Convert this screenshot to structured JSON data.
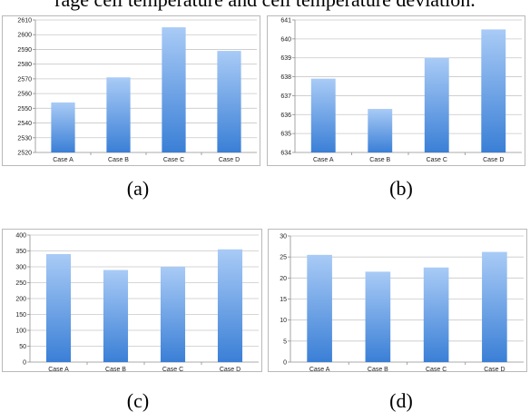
{
  "caption": "rage cell temperature and cell temperature deviation.",
  "colors": {
    "bar_top": "#a9cbf6",
    "bar_bottom": "#3a7fd6",
    "grid": "#c8c8c8",
    "axis": "#8f8f8f"
  },
  "chart_data": [
    {
      "label": "(a)",
      "type": "bar",
      "categories": [
        "Case A",
        "Case B",
        "Case C",
        "Case D"
      ],
      "values": [
        2554,
        2571,
        2605,
        2589
      ],
      "ylim": [
        2520,
        2610
      ],
      "yticks": [
        2520,
        2530,
        2540,
        2550,
        2560,
        2570,
        2580,
        2590,
        2600,
        2610
      ],
      "grid": true
    },
    {
      "label": "(b)",
      "type": "bar",
      "categories": [
        "Case A",
        "Case B",
        "Case C",
        "Case D"
      ],
      "values": [
        637.9,
        636.3,
        639.0,
        640.5
      ],
      "ylim": [
        634,
        641
      ],
      "yticks": [
        634,
        635,
        636,
        637,
        638,
        639,
        640,
        641
      ],
      "grid": true
    },
    {
      "label": "(c)",
      "type": "bar",
      "categories": [
        "Case A",
        "Case B",
        "Case C",
        "Case D"
      ],
      "values": [
        340,
        290,
        300,
        355
      ],
      "ylim": [
        0,
        400
      ],
      "yticks": [
        0,
        50,
        100,
        150,
        200,
        250,
        300,
        350,
        400
      ],
      "grid": true
    },
    {
      "label": "(d)",
      "type": "bar",
      "categories": [
        "Case A",
        "Case B",
        "Case C",
        "Case D"
      ],
      "values": [
        25.5,
        21.5,
        22.5,
        26.2
      ],
      "ylim": [
        0,
        30
      ],
      "yticks": [
        0,
        5,
        10,
        15,
        20,
        25,
        30
      ],
      "grid": true
    }
  ]
}
